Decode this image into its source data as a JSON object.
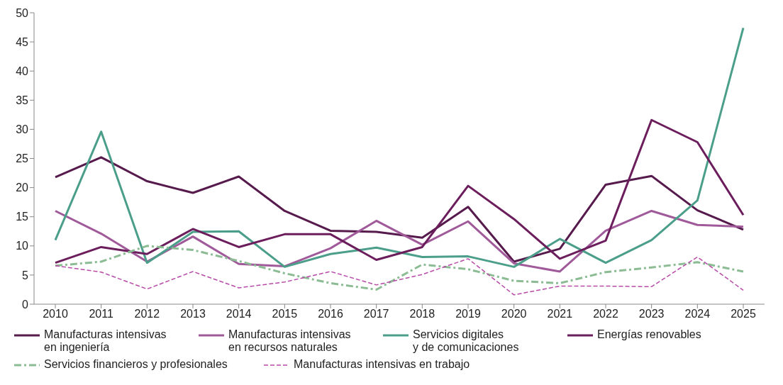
{
  "chart_data": {
    "type": "line",
    "categories": [
      "2010",
      "2011",
      "2012",
      "2013",
      "2014",
      "2015",
      "2016",
      "2017",
      "2018",
      "2019",
      "2020",
      "2021",
      "2022",
      "2023",
      "2024",
      "2025"
    ],
    "series": [
      {
        "name": "Manufacturas intensivas\nen ingeniería",
        "color": "#561a4c",
        "line_style": "solid",
        "values": [
          21.8,
          25.2,
          21.1,
          19.1,
          21.9,
          16.0,
          12.6,
          12.4,
          11.4,
          16.7,
          7.3,
          9.5,
          20.5,
          22.0,
          16.1,
          12.8
        ]
      },
      {
        "name": "Manufacturas intensivas\nen recursos naturales",
        "color": "#a05a9a",
        "line_style": "solid",
        "values": [
          16.0,
          12.1,
          7.3,
          11.6,
          6.9,
          6.5,
          9.6,
          14.3,
          10.2,
          14.2,
          7.0,
          5.6,
          12.6,
          16.0,
          13.6,
          13.3
        ]
      },
      {
        "name": "Servicios digitales\ny de comunicaciones",
        "color": "#4a9e8a",
        "line_style": "solid",
        "values": [
          11.0,
          29.6,
          7.1,
          12.4,
          12.5,
          6.4,
          8.6,
          9.7,
          8.1,
          8.2,
          6.4,
          11.2,
          7.1,
          11.0,
          17.8,
          47.4
        ]
      },
      {
        "name": "Energías renovables",
        "color": "#6b1d5c",
        "line_style": "solid",
        "values": [
          7.1,
          9.8,
          8.6,
          12.9,
          9.8,
          12.0,
          12.0,
          7.6,
          9.8,
          20.3,
          14.6,
          7.8,
          10.9,
          31.6,
          27.8,
          15.3
        ]
      },
      {
        "name": "Servicios financieros y profesionales",
        "color": "#8cbc94",
        "line_style": "dashdot",
        "values": [
          6.6,
          7.3,
          10.0,
          9.3,
          7.4,
          5.3,
          3.6,
          2.5,
          6.8,
          6.0,
          4.0,
          3.6,
          5.5,
          6.3,
          7.2,
          5.6
        ]
      },
      {
        "name": "Manufacturas intensivas en trabajo",
        "color": "#b84aa8",
        "line_style": "dashed",
        "values": [
          6.6,
          5.5,
          2.6,
          5.6,
          2.8,
          3.8,
          5.6,
          3.3,
          5.1,
          7.8,
          1.6,
          3.1,
          3.1,
          3.0,
          8.1,
          2.4
        ]
      }
    ],
    "ylim": [
      0,
      50
    ],
    "yticks": [
      0,
      5,
      10,
      15,
      20,
      25,
      30,
      35,
      40,
      45,
      50
    ],
    "grid": false,
    "legend": "bottom",
    "marker": "none"
  }
}
